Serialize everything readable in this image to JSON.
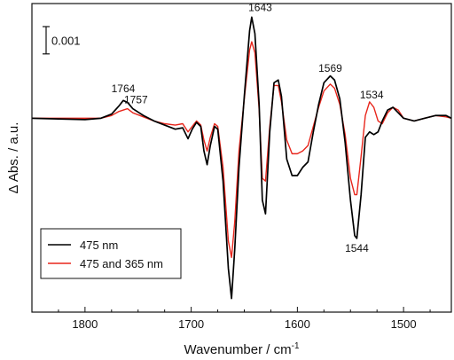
{
  "chart_data": {
    "type": "line",
    "xlabel": "Wavenumber / cm",
    "xlabel_superscript": "-1",
    "ylabel": "Δ Abs. / a.u.",
    "xlim": [
      1850,
      1455
    ],
    "ylim": [
      -0.0071,
      0.0042
    ],
    "x_reversed": true,
    "x_ticks": [
      1800,
      1700,
      1600,
      1500
    ],
    "grid": false,
    "legend_position": "bottom-left",
    "scale_bar": {
      "label": "0.001",
      "value": 0.001
    },
    "annotations": [
      {
        "text": "1764",
        "x": 1764,
        "y": 0.00095
      },
      {
        "text": "1757",
        "x": 1752,
        "y": 0.00055
      },
      {
        "text": "1643",
        "x": 1635,
        "y": 0.00393
      },
      {
        "text": "1569",
        "x": 1569,
        "y": 0.0017
      },
      {
        "text": "1534",
        "x": 1530,
        "y": 0.00073
      },
      {
        "text": "1544",
        "x": 1544,
        "y": -0.0049
      }
    ],
    "series": [
      {
        "name": "475 nm",
        "color": "#000000",
        "points": [
          [
            1850,
            0.0
          ],
          [
            1800,
            -5e-05
          ],
          [
            1785,
            0.0
          ],
          [
            1775,
            0.00015
          ],
          [
            1768,
            0.00045
          ],
          [
            1764,
            0.00065
          ],
          [
            1760,
            0.00058
          ],
          [
            1755,
            0.00035
          ],
          [
            1745,
            0.0001
          ],
          [
            1735,
            -0.0001
          ],
          [
            1725,
            -0.00025
          ],
          [
            1715,
            -0.0004
          ],
          [
            1708,
            -0.00035
          ],
          [
            1703,
            -0.00075
          ],
          [
            1699,
            -0.0004
          ],
          [
            1695,
            -0.00015
          ],
          [
            1691,
            -0.0003
          ],
          [
            1688,
            -0.0012
          ],
          [
            1685,
            -0.0017
          ],
          [
            1682,
            -0.001
          ],
          [
            1678,
            -0.0003
          ],
          [
            1675,
            -0.0004
          ],
          [
            1670,
            -0.0023
          ],
          [
            1665,
            -0.0055
          ],
          [
            1662,
            -0.0066
          ],
          [
            1659,
            -0.0048
          ],
          [
            1655,
            -0.0018
          ],
          [
            1650,
            0.0008
          ],
          [
            1645,
            0.0032
          ],
          [
            1643,
            0.0037
          ],
          [
            1640,
            0.0031
          ],
          [
            1636,
            0.0005
          ],
          [
            1633,
            -0.003
          ],
          [
            1630,
            -0.0035
          ],
          [
            1626,
            -0.0005
          ],
          [
            1622,
            0.0013
          ],
          [
            1618,
            0.0014
          ],
          [
            1615,
            0.0008
          ],
          [
            1610,
            -0.0015
          ],
          [
            1605,
            -0.0021
          ],
          [
            1600,
            -0.0021
          ],
          [
            1595,
            -0.0018
          ],
          [
            1590,
            -0.0016
          ],
          [
            1585,
            -0.0005
          ],
          [
            1580,
            0.0005
          ],
          [
            1575,
            0.0013
          ],
          [
            1569,
            0.00155
          ],
          [
            1565,
            0.0014
          ],
          [
            1560,
            0.0007
          ],
          [
            1555,
            -0.0009
          ],
          [
            1550,
            -0.003
          ],
          [
            1546,
            -0.0043
          ],
          [
            1544,
            -0.0044
          ],
          [
            1540,
            -0.0028
          ],
          [
            1536,
            -0.0007
          ],
          [
            1532,
            -0.0005
          ],
          [
            1528,
            -0.0006
          ],
          [
            1524,
            -0.0005
          ],
          [
            1520,
            -0.0001
          ],
          [
            1515,
            0.0003
          ],
          [
            1510,
            0.0004
          ],
          [
            1505,
            0.0002
          ],
          [
            1500,
            0.0
          ],
          [
            1490,
            -0.0001
          ],
          [
            1480,
            0.0
          ],
          [
            1470,
            0.0001
          ],
          [
            1460,
            0.0001
          ],
          [
            1455,
            0.0
          ]
        ]
      },
      {
        "name": "475 and 365 nm",
        "color": "#e8261c",
        "points": [
          [
            1850,
            0.0
          ],
          [
            1800,
            0.0
          ],
          [
            1785,
            0.0
          ],
          [
            1775,
            0.0001
          ],
          [
            1768,
            0.00025
          ],
          [
            1760,
            0.00035
          ],
          [
            1755,
            0.0002
          ],
          [
            1745,
            5e-05
          ],
          [
            1735,
            -0.0001
          ],
          [
            1725,
            -0.0002
          ],
          [
            1715,
            -0.00025
          ],
          [
            1708,
            -0.0002
          ],
          [
            1703,
            -0.0005
          ],
          [
            1699,
            -0.0003
          ],
          [
            1695,
            -0.0001
          ],
          [
            1691,
            -0.00025
          ],
          [
            1688,
            -0.0008
          ],
          [
            1685,
            -0.0012
          ],
          [
            1682,
            -0.0007
          ],
          [
            1678,
            -0.0002
          ],
          [
            1675,
            -0.0003
          ],
          [
            1670,
            -0.0018
          ],
          [
            1665,
            -0.0045
          ],
          [
            1662,
            -0.0051
          ],
          [
            1659,
            -0.0038
          ],
          [
            1655,
            -0.0012
          ],
          [
            1650,
            0.0007
          ],
          [
            1645,
            0.0025
          ],
          [
            1643,
            0.0028
          ],
          [
            1640,
            0.0024
          ],
          [
            1636,
            0.0003
          ],
          [
            1633,
            -0.0022
          ],
          [
            1630,
            -0.0023
          ],
          [
            1626,
            -0.0003
          ],
          [
            1622,
            0.0012
          ],
          [
            1618,
            0.0012
          ],
          [
            1615,
            0.0006
          ],
          [
            1610,
            -0.0008
          ],
          [
            1605,
            -0.0013
          ],
          [
            1600,
            -0.0013
          ],
          [
            1595,
            -0.0012
          ],
          [
            1590,
            -0.001
          ],
          [
            1585,
            -0.0003
          ],
          [
            1580,
            0.0004
          ],
          [
            1575,
            0.001
          ],
          [
            1569,
            0.00125
          ],
          [
            1565,
            0.0011
          ],
          [
            1560,
            0.0005
          ],
          [
            1555,
            -0.0006
          ],
          [
            1550,
            -0.0022
          ],
          [
            1546,
            -0.0028
          ],
          [
            1544,
            -0.0028
          ],
          [
            1540,
            -0.0014
          ],
          [
            1536,
            0.0001
          ],
          [
            1532,
            0.0006
          ],
          [
            1528,
            0.0004
          ],
          [
            1524,
            -0.0001
          ],
          [
            1520,
            -0.0002
          ],
          [
            1515,
            0.0002
          ],
          [
            1510,
            0.0004
          ],
          [
            1505,
            0.0003
          ],
          [
            1500,
            0.0
          ],
          [
            1490,
            -0.0001
          ],
          [
            1480,
            0.0
          ],
          [
            1470,
            0.0001
          ],
          [
            1460,
            5e-05
          ],
          [
            1455,
            0.0
          ]
        ]
      }
    ]
  }
}
